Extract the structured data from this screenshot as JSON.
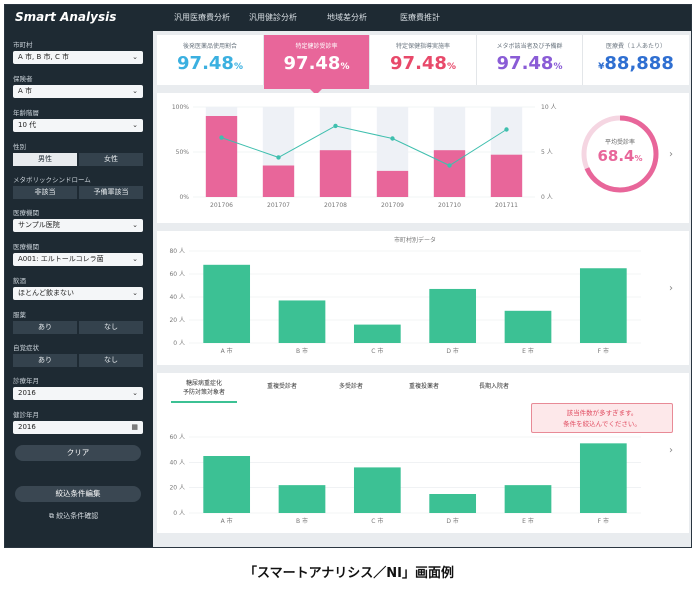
{
  "app": {
    "title": "Smart Analysis"
  },
  "nav": {
    "tabs": [
      "汎用医療費分析",
      "汎用健診分析",
      "地域差分析",
      "医療費推計"
    ]
  },
  "sidebar": {
    "municipality_label": "市町村",
    "municipality_value": "A 市, B 市, C 市",
    "insurer_label": "保険者",
    "insurer_value": "A 市",
    "age_label": "年齢階層",
    "age_value": "10 代",
    "sex_label": "性別",
    "sex_options": [
      "男性",
      "女性"
    ],
    "metabo_label": "メタボリックシンドローム",
    "metabo_options": [
      "非該当",
      "予備軍該当"
    ],
    "facility_label": "医療機関",
    "facility_value": "サンプル医院",
    "disease_label": "医療機関",
    "disease_value": "A001: エルトールコレラ菌",
    "drink_label": "飲酒",
    "drink_value": "ほとんど飲まない",
    "medicine_label": "服薬",
    "medicine_options": [
      "あり",
      "なし"
    ],
    "subjective_label": "自覚症状",
    "subjective_options": [
      "あり",
      "なし"
    ],
    "exam_year_label": "診療年月",
    "exam_year_value": "2016",
    "checkup_year_label": "健診年月",
    "checkup_year_value": "2016",
    "clear_button": "クリア",
    "edit_filter_button": "絞込条件編集",
    "confirm_filter_link": "絞込条件確認"
  },
  "kpis": [
    {
      "title": "後発医薬品使用割合",
      "value": "97.48",
      "unit": "%",
      "color": "#3bb0e0",
      "selected": false
    },
    {
      "title": "特定健診受診率",
      "value": "97.48",
      "unit": "%",
      "color": "#ffffff",
      "selected": true
    },
    {
      "title": "特定保健指導実施率",
      "value": "97.48",
      "unit": "%",
      "color": "#e8496a",
      "selected": false
    },
    {
      "title": "メタボ該当者及び予備群",
      "value": "97.48",
      "unit": "%",
      "color": "#8a5cd6",
      "selected": false
    },
    {
      "title": "医療費（１人あたり）",
      "value": "88,888",
      "unit": "¥",
      "color": "#2f6fd1",
      "selected": false
    }
  ],
  "gauge": {
    "label": "平均受診率",
    "value": "68.4",
    "unit": "%",
    "fraction": 0.684
  },
  "chart_data": [
    {
      "type": "bar+line",
      "categories": [
        "201706",
        "201707",
        "201708",
        "201709",
        "201710",
        "201711"
      ],
      "y_left_ticks": [
        "100%",
        "50%",
        "0%"
      ],
      "y_right_ticks": [
        "10 人",
        "5 人",
        "0 人"
      ],
      "series": [
        {
          "values": [
            90,
            35,
            52,
            29,
            52,
            47
          ],
          "color": "#e8669a"
        },
        {
          "values": [
            6.6,
            4.4,
            7.9,
            6.5,
            3.5,
            7.5
          ],
          "color": "#3fbfae"
        }
      ],
      "ylim_left": [
        0,
        100
      ],
      "ylim_right": [
        0,
        10
      ]
    },
    {
      "type": "bar",
      "title": "市町村別データ",
      "categories": [
        "A 市",
        "B 市",
        "C 市",
        "D 市",
        "E 市",
        "F 市"
      ],
      "values": [
        68,
        37,
        16,
        47,
        28,
        65
      ],
      "y_ticks": [
        "80 人",
        "60 人",
        "40 人",
        "20 人",
        "0 人"
      ],
      "ylim": [
        0,
        80
      ],
      "color": "#3cc194"
    },
    {
      "type": "bar",
      "categories": [
        "A 市",
        "B 市",
        "C 市",
        "D 市",
        "E 市",
        "F 市"
      ],
      "values": [
        45,
        22,
        36,
        15,
        22,
        55
      ],
      "y_ticks": [
        "60 人",
        "40 人",
        "20 人",
        "0 人"
      ],
      "ylim": [
        0,
        60
      ],
      "color": "#3cc194"
    }
  ],
  "bottom_tabs": [
    "糖尿病重症化\n予防対策対象者",
    "重複受診者",
    "多受診者",
    "重複投薬者",
    "長期入院者"
  ],
  "warning": {
    "line1": "該当件数が多すぎます。",
    "line2": "条件を絞込んでください。"
  },
  "caption": "「スマートアナリシス／NI」画面例"
}
